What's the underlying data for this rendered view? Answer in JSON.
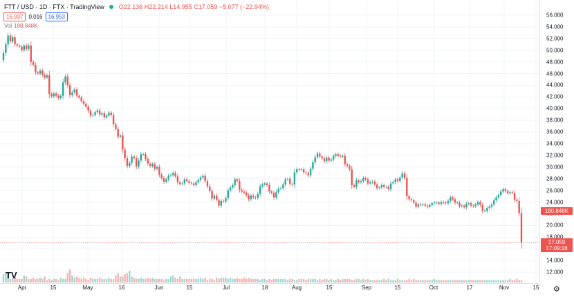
{
  "header": {
    "symbol": "FTT / USD · 1D · FTX · TradingView",
    "ohlc": "O22.136 H22.214 L14.955 C17.059 −5.077 (−22.94%)"
  },
  "quote": {
    "bid": "16.937",
    "spread": "0.016",
    "ask": "16.953"
  },
  "volume_label": {
    "label": "Vol",
    "value": "180.848K"
  },
  "price_tags": {
    "volume": "180.848K",
    "last_price": "17.059",
    "countdown": "17:09:18"
  },
  "logo": "TV",
  "settings_icon": "⚙",
  "colors": {
    "up": "#26a69a",
    "down": "#ef5350",
    "vol_up": "#26a69a",
    "vol_down": "#ef5350"
  },
  "chart_data": {
    "type": "candlestick",
    "title": "FTT / USD",
    "y_ticks": [
      "56.000",
      "54.000",
      "52.000",
      "50.000",
      "48.000",
      "46.000",
      "44.000",
      "42.000",
      "40.000",
      "38.000",
      "36.000",
      "34.000",
      "32.000",
      "30.000",
      "28.000",
      "26.000",
      "24.000",
      "22.000",
      "20.000",
      "18.000",
      "16.000",
      "14.000",
      "12.000"
    ],
    "ylim": [
      11.3,
      56.7
    ],
    "x_ticks": [
      "Apr",
      "15",
      "May",
      "16",
      "Jun",
      "15",
      "Jul",
      "18",
      "Aug",
      "15",
      "Sep",
      "15",
      "Oct",
      "17",
      "Nov",
      "15"
    ],
    "closes": [
      49.5,
      51,
      52.5,
      51.5,
      52.2,
      51,
      50.8,
      50.6,
      50,
      50.8,
      50.2,
      50.8,
      48,
      47.5,
      46.2,
      46,
      46.5,
      45.8,
      45.3,
      45.7,
      42.5,
      42.1,
      42.6,
      42.2,
      41.8,
      42.2,
      44.5,
      45.5,
      44,
      42.3,
      42.8,
      43.3,
      42.2,
      41.9,
      41.3,
      40.8,
      40.3,
      39.6,
      38.8,
      38.9,
      39.4,
      39.7,
      39,
      39.2,
      38.5,
      38.8,
      39.3,
      38.9,
      37.3,
      36.5,
      35.2,
      35.4,
      33,
      31.5,
      30.2,
      30.7,
      31.8,
      31.5,
      30.1,
      31.1,
      32.2,
      32.2,
      31.4,
      30.6,
      30.2,
      30.5,
      29.7,
      30,
      28.7,
      28.1,
      27.5,
      27.9,
      28.5,
      28.6,
      29,
      28.4,
      27.4,
      27.1,
      27.2,
      27.9,
      27.6,
      27.3,
      27.2,
      26.9,
      27.4,
      27.8,
      28.2,
      28.5,
      27.6,
      26.7,
      25.9,
      24.6,
      25.1,
      24.4,
      23.4,
      24.2,
      24.1,
      24.7,
      26,
      26.5,
      26.9,
      27.9,
      27.6,
      26.1,
      25.8,
      25.6,
      25.2,
      24.5,
      25.1,
      24.8,
      24.7,
      25.4,
      26.7,
      27,
      27.2,
      26.9,
      25.8,
      25.6,
      24.8,
      25.7,
      26.3,
      26.4,
      27,
      27.9,
      28,
      27.1,
      27,
      29.1,
      29.6,
      29.5,
      29.6,
      29.1,
      29,
      28.6,
      29.7,
      30.8,
      31.7,
      32.3,
      31.8,
      31.5,
      31,
      31.6,
      31.1,
      31.3,
      31.9,
      32.2,
      31.9,
      31.8,
      31.9,
      30.5,
      30.2,
      29.6,
      26.9,
      26.6,
      27.7,
      27.4,
      27.6,
      28.1,
      27.9,
      27.2,
      27.4,
      27.5,
      27,
      26.4,
      26.5,
      26.9,
      26.6,
      26.6,
      26.2,
      27.2,
      27.4,
      27.9,
      27.6,
      28.2,
      28.9,
      28.1,
      25,
      24.5,
      24.3,
      23.9,
      23.2,
      23.6,
      23.5,
      23.6,
      23.4,
      23.2,
      23.5,
      23.8,
      23.9,
      23.9,
      23.7,
      24,
      23.9,
      23.8,
      24.2,
      24.8,
      24.5,
      23.9,
      23.9,
      23.3,
      23.4,
      23.1,
      23.7,
      23.8,
      23.4,
      23.3,
      23.6,
      24,
      23.5,
      22.5,
      22.5,
      23,
      23.2,
      23.6,
      24.3,
      24.8,
      25.2,
      25.8,
      26.2,
      25.9,
      25.5,
      25.7,
      25.6,
      24.4,
      24.2,
      22.1,
      17.06
    ],
    "volumes": [
      7,
      8,
      7,
      3,
      4,
      5,
      3,
      3,
      3,
      6,
      5,
      3,
      3,
      4,
      3,
      3,
      4,
      3,
      5,
      2,
      3,
      2,
      3,
      3,
      2,
      4,
      3,
      3,
      8,
      11,
      6,
      4,
      5,
      4,
      3,
      4,
      3,
      2,
      4,
      3,
      3,
      3,
      4,
      3,
      3,
      3,
      4,
      3,
      3,
      6,
      8,
      5,
      5,
      7,
      8,
      10,
      5,
      4,
      3,
      3,
      4,
      3,
      3,
      4,
      3,
      4,
      3,
      3,
      3,
      3,
      2,
      3,
      3,
      5,
      6,
      4,
      3,
      5,
      3,
      3,
      3,
      3,
      3,
      3,
      3,
      3,
      4,
      3,
      4,
      2,
      3,
      3,
      2,
      4,
      3,
      4,
      4,
      4,
      3,
      4,
      3,
      3,
      4,
      3,
      3,
      4,
      3,
      4,
      3,
      3,
      3,
      3,
      2,
      3,
      3,
      2,
      3,
      2,
      3,
      3,
      3,
      3,
      3,
      3,
      2,
      3,
      3,
      2,
      2,
      3,
      3,
      3,
      2,
      3,
      3,
      3,
      3,
      2,
      3,
      2,
      3,
      3,
      2,
      3,
      2,
      2,
      3,
      2,
      3,
      3,
      3,
      3,
      2,
      2,
      3,
      3,
      2,
      3,
      2,
      3,
      2,
      2,
      2,
      2,
      2,
      2,
      3,
      2,
      3,
      2,
      2,
      2,
      3,
      2,
      2,
      2,
      2,
      3,
      2,
      3,
      2,
      2,
      2,
      2,
      2,
      2,
      2,
      2,
      3,
      2,
      2,
      2,
      2,
      2,
      2,
      2,
      2,
      2,
      2,
      2,
      2,
      2,
      2,
      2,
      2,
      2,
      2,
      2,
      2,
      2,
      2,
      2,
      2,
      2,
      2,
      2,
      2,
      2,
      2,
      2,
      2,
      3,
      2,
      2,
      3,
      2,
      2,
      2,
      2,
      3,
      2,
      2,
      3,
      3,
      3,
      5,
      30,
      34,
      41
    ]
  }
}
